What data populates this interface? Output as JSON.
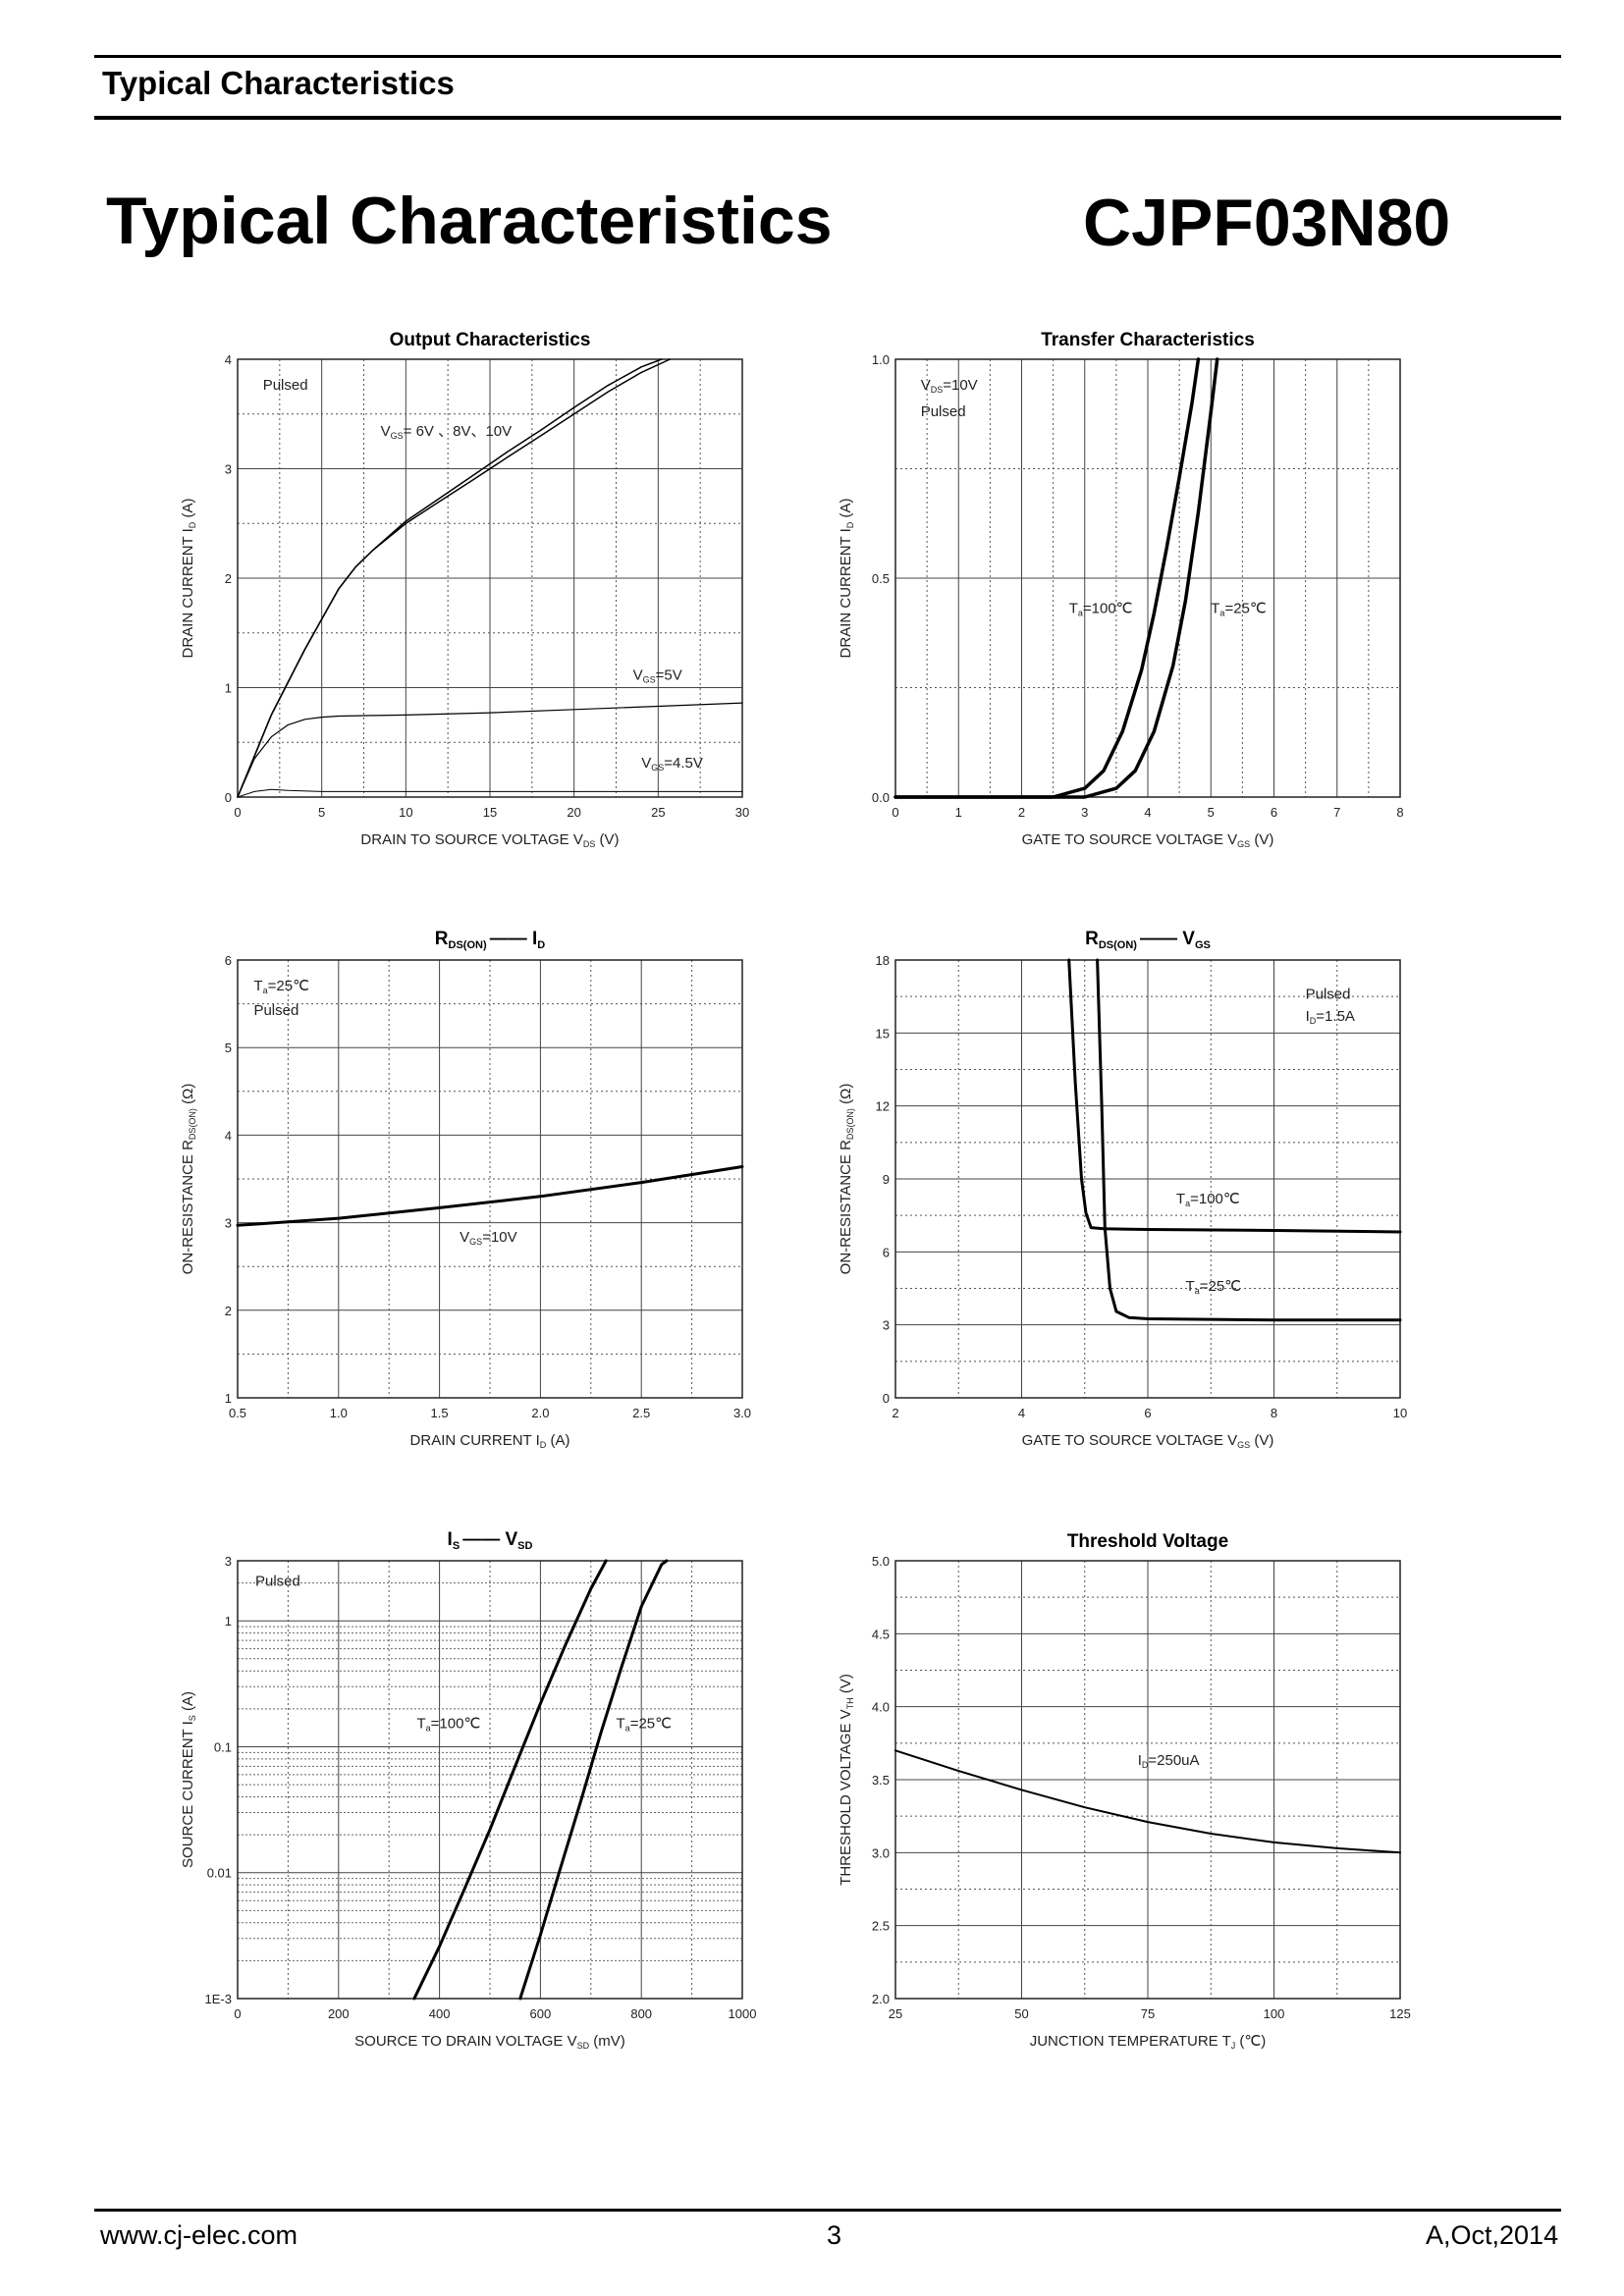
{
  "header": {
    "section_title": "Typical Characteristics"
  },
  "title": {
    "main": "Typical Characteristics",
    "part": "CJPF03N80"
  },
  "footer": {
    "website": "www.cj-elec.com",
    "page": "3",
    "revision": "A,Oct,2014"
  },
  "chart_data": [
    {
      "id": "output",
      "type": "line",
      "title": "Output Characteristics",
      "xlabel": "DRAIN TO SOURCE VOLTAGE V(DS) (V)",
      "ylabel": "DRAIN CURRENT I(D) (A)",
      "xlim": [
        0,
        30
      ],
      "ylim": [
        0,
        4
      ],
      "xticks": [
        0,
        5,
        10,
        15,
        20,
        25,
        30
      ],
      "yticks": [
        0,
        1,
        2,
        3,
        4
      ],
      "xtick_labels": [
        "0",
        "5",
        "10",
        "15",
        "20",
        "25",
        "30"
      ],
      "ytick_labels": [
        "0",
        "1",
        "2",
        "3",
        "4"
      ],
      "grid": true,
      "annotations": [
        {
          "text": "Pulsed",
          "x": 1.5,
          "y": 3.72
        },
        {
          "text": "V(GS)= 6V 、8V、10V",
          "x": 8.5,
          "y": 3.3
        },
        {
          "text": "V(GS)=5V",
          "x": 23.5,
          "y": 1.07
        },
        {
          "text": "V(GS)=4.5V",
          "x": 24.0,
          "y": 0.27
        }
      ],
      "series": [
        {
          "name": "VGS=6V",
          "width": 1.5,
          "x": [
            0,
            2,
            4,
            6,
            7,
            8,
            10,
            12,
            14,
            16,
            18,
            20,
            22,
            24,
            25.7
          ],
          "y": [
            0,
            0.75,
            1.35,
            1.9,
            2.1,
            2.25,
            2.5,
            2.7,
            2.9,
            3.1,
            3.3,
            3.5,
            3.7,
            3.88,
            4.0
          ]
        },
        {
          "name": "VGS=8V/10V",
          "width": 1.5,
          "x": [
            0,
            2,
            4,
            6,
            7,
            8,
            10,
            12,
            14,
            16,
            18,
            20,
            22,
            24,
            25.2
          ],
          "y": [
            0,
            0.75,
            1.35,
            1.9,
            2.1,
            2.25,
            2.52,
            2.73,
            2.94,
            3.15,
            3.35,
            3.56,
            3.76,
            3.93,
            4.0
          ]
        },
        {
          "name": "VGS=5V",
          "width": 1.2,
          "x": [
            0,
            1,
            2,
            3,
            4,
            5,
            6,
            8,
            10,
            15,
            20,
            25,
            30
          ],
          "y": [
            0,
            0.35,
            0.55,
            0.66,
            0.71,
            0.73,
            0.74,
            0.745,
            0.75,
            0.77,
            0.8,
            0.83,
            0.86
          ]
        },
        {
          "name": "VGS=4.5V",
          "width": 1,
          "x": [
            0,
            1,
            2,
            3,
            5,
            10,
            20,
            30
          ],
          "y": [
            0,
            0.05,
            0.07,
            0.06,
            0.05,
            0.05,
            0.05,
            0.05
          ]
        }
      ]
    },
    {
      "id": "transfer",
      "type": "line",
      "title": "Transfer Characteristics",
      "xlabel": "GATE TO SOURCE VOLTAGE V(GS) (V)",
      "ylabel": "DRAIN CURRENT I(D) (A)",
      "xlim": [
        0,
        8
      ],
      "ylim": [
        0,
        1.0
      ],
      "xticks": [
        0,
        1,
        2,
        3,
        4,
        5,
        6,
        7,
        8
      ],
      "yticks": [
        0,
        0.5,
        1.0
      ],
      "xtick_labels": [
        "0",
        "1",
        "2",
        "3",
        "4",
        "5",
        "6",
        "7",
        "8"
      ],
      "ytick_labels": [
        "0.0",
        "0.5",
        "1.0"
      ],
      "grid": true,
      "annotations": [
        {
          "text": "V(DS)=10V",
          "x": 0.4,
          "y": 0.93
        },
        {
          "text": "Pulsed",
          "x": 0.4,
          "y": 0.87
        },
        {
          "text": "T(a)=100℃",
          "x": 2.75,
          "y": 0.42
        },
        {
          "text": "T(a)=25℃",
          "x": 5.0,
          "y": 0.42
        }
      ],
      "series": [
        {
          "name": "Ta=100℃",
          "width": 3.5,
          "x": [
            0,
            2.5,
            3.0,
            3.3,
            3.6,
            3.9,
            4.1,
            4.3,
            4.5,
            4.7,
            4.8
          ],
          "y": [
            0,
            0,
            0.02,
            0.06,
            0.15,
            0.29,
            0.42,
            0.57,
            0.73,
            0.9,
            1.0
          ]
        },
        {
          "name": "Ta=25℃",
          "width": 3.5,
          "x": [
            0,
            3.0,
            3.5,
            3.8,
            4.1,
            4.4,
            4.6,
            4.8,
            5.0,
            5.1
          ],
          "y": [
            0,
            0,
            0.02,
            0.06,
            0.15,
            0.3,
            0.45,
            0.65,
            0.88,
            1.0
          ]
        }
      ]
    },
    {
      "id": "rdson_id",
      "type": "line",
      "title_parts": [
        "R",
        "DS(ON)",
        "—— I",
        "D"
      ],
      "xlabel": "DRAIN CURRENT I(D) (A)",
      "ylabel": "ON-RESISTANCE R(DS(ON)) (Ω)",
      "xlim": [
        0.5,
        3.0
      ],
      "ylim": [
        1,
        6
      ],
      "xticks": [
        0.5,
        1.0,
        1.5,
        2.0,
        2.5,
        3.0
      ],
      "yticks": [
        1,
        2,
        3,
        4,
        5,
        6
      ],
      "xtick_labels": [
        "0.5",
        "1.0",
        "1.5",
        "2.0",
        "2.5",
        "3.0"
      ],
      "ytick_labels": [
        "1",
        "2",
        "3",
        "4",
        "5",
        "6"
      ],
      "grid": true,
      "annotations": [
        {
          "text": "T(a)=25℃",
          "x": 0.58,
          "y": 5.65
        },
        {
          "text": "Pulsed",
          "x": 0.58,
          "y": 5.37
        },
        {
          "text": "V(GS)=10V",
          "x": 1.6,
          "y": 2.78
        }
      ],
      "series": [
        {
          "name": "VGS=10V",
          "width": 3,
          "x": [
            0.5,
            1.0,
            1.5,
            2.0,
            2.5,
            3.0
          ],
          "y": [
            2.97,
            3.05,
            3.17,
            3.3,
            3.46,
            3.64
          ]
        }
      ]
    },
    {
      "id": "rdson_vgs",
      "type": "line",
      "title_parts": [
        "R",
        "DS(ON)",
        "—— V",
        "GS"
      ],
      "xlabel": "GATE TO SOURCE VOLTAGE V(GS) (V)",
      "ylabel": "ON-RESISTANCE R(DS(ON)) (Ω)",
      "xlim": [
        2,
        10
      ],
      "ylim": [
        0,
        18
      ],
      "xticks": [
        2,
        4,
        6,
        8,
        10
      ],
      "yticks": [
        0,
        3,
        6,
        9,
        12,
        15,
        18
      ],
      "xtick_labels": [
        "2",
        "4",
        "6",
        "8",
        "10"
      ],
      "ytick_labels": [
        "0",
        "3",
        "6",
        "9",
        "12",
        "15",
        "18"
      ],
      "grid": true,
      "annotations": [
        {
          "text": "Pulsed",
          "x": 8.5,
          "y": 16.4
        },
        {
          "text": "I(D)=1.5A",
          "x": 8.5,
          "y": 15.5
        },
        {
          "text": "T(a)=100℃",
          "x": 6.45,
          "y": 8.0
        },
        {
          "text": "T(a)=25℃",
          "x": 6.6,
          "y": 4.4
        }
      ],
      "series": [
        {
          "name": "Ta=100℃",
          "width": 3,
          "x": [
            4.75,
            4.85,
            4.95,
            5.02,
            5.1,
            5.3,
            6,
            8,
            10
          ],
          "y": [
            18,
            13,
            9,
            7.6,
            7.0,
            6.95,
            6.92,
            6.88,
            6.82
          ]
        },
        {
          "name": "Ta=25℃",
          "width": 3,
          "x": [
            5.2,
            5.27,
            5.32,
            5.4,
            5.5,
            5.7,
            6,
            8,
            10
          ],
          "y": [
            18,
            12,
            7,
            4.5,
            3.55,
            3.3,
            3.25,
            3.2,
            3.2
          ]
        }
      ]
    },
    {
      "id": "is_vsd",
      "type": "line",
      "y_scale": "log",
      "title_parts": [
        "I",
        "S",
        "—— V",
        "SD"
      ],
      "xlabel": "SOURCE TO DRAIN VOLTAGE V(SD) (mV)",
      "ylabel": "SOURCE CURRENT I(S) (A)",
      "xlim": [
        0,
        1000
      ],
      "ylim": [
        0.001,
        3
      ],
      "xticks": [
        0,
        200,
        400,
        600,
        800,
        1000
      ],
      "yticks": [
        0.001,
        0.01,
        0.1,
        1,
        3
      ],
      "xtick_labels": [
        "0",
        "200",
        "400",
        "600",
        "800",
        "1000"
      ],
      "ytick_labels": [
        "1E-3",
        "0.01",
        "0.1",
        "1",
        "3"
      ],
      "grid": true,
      "annotations": [
        {
          "text": "Pulsed",
          "x": 35,
          "y": 1.9
        },
        {
          "text": "T(a)=100℃",
          "x": 355,
          "y": 0.14
        },
        {
          "text": "T(a)=25℃",
          "x": 750,
          "y": 0.14
        }
      ],
      "series": [
        {
          "name": "Ta=100℃",
          "width": 3,
          "x": [
            350,
            400,
            450,
            500,
            550,
            600,
            650,
            700,
            730
          ],
          "y": [
            0.001,
            0.0026,
            0.0075,
            0.022,
            0.07,
            0.22,
            0.65,
            1.8,
            3.0
          ]
        },
        {
          "name": "Ta=25℃",
          "width": 3,
          "x": [
            560,
            600,
            640,
            680,
            720,
            760,
            800,
            840,
            850
          ],
          "y": [
            0.001,
            0.0032,
            0.011,
            0.037,
            0.13,
            0.42,
            1.3,
            2.8,
            3.0
          ]
        }
      ]
    },
    {
      "id": "threshold",
      "type": "line",
      "title": "Threshold Voltage",
      "xlabel": "JUNCTION TEMPERATURE T(J) (℃)",
      "ylabel": "THRESHOLD VOLTAGE V(TH) (V)",
      "xlim": [
        25,
        125
      ],
      "ylim": [
        2.0,
        5.0
      ],
      "xticks": [
        25,
        50,
        75,
        100,
        125
      ],
      "yticks": [
        2.0,
        2.5,
        3.0,
        3.5,
        4.0,
        4.5,
        5.0
      ],
      "xtick_labels": [
        "25",
        "50",
        "75",
        "100",
        "125"
      ],
      "ytick_labels": [
        "2.0",
        "2.5",
        "3.0",
        "3.5",
        "4.0",
        "4.5",
        "5.0"
      ],
      "grid": true,
      "annotations": [
        {
          "text": "I(D)=250uA",
          "x": 73,
          "y": 3.6
        }
      ],
      "series": [
        {
          "name": "ID=250uA",
          "width": 2,
          "x": [
            25,
            37.5,
            50,
            62.5,
            75,
            87.5,
            100,
            112.5,
            125
          ],
          "y": [
            3.7,
            3.56,
            3.43,
            3.31,
            3.21,
            3.13,
            3.07,
            3.03,
            3.0
          ]
        }
      ]
    }
  ]
}
